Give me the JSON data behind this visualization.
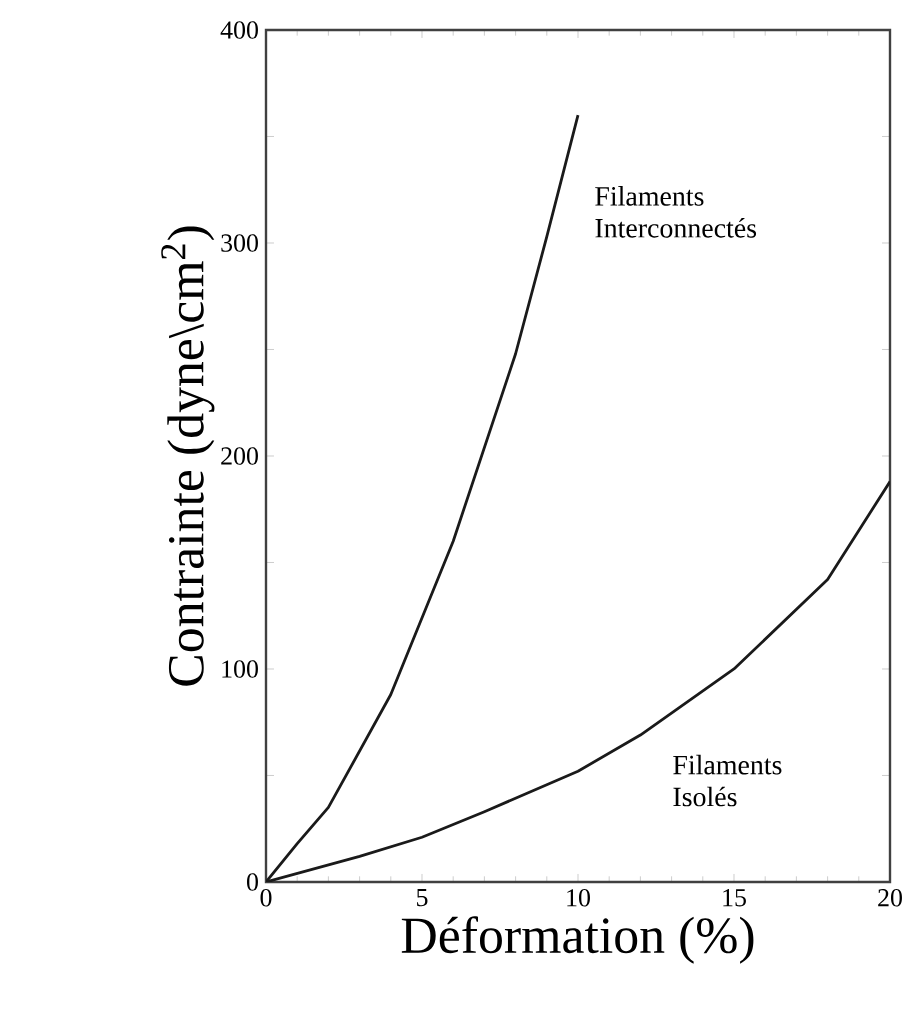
{
  "chart_data": {
    "type": "line",
    "xlabel": "Déformation (%)",
    "ylabel": "Contrainte (dyne\\cm$^{2}$)",
    "xlim": [
      0,
      20
    ],
    "ylim": [
      0,
      400
    ],
    "xticks": [
      0,
      5,
      10,
      15,
      20
    ],
    "yticks": [
      0,
      {
        "value": 50,
        "label": null
      },
      100,
      {
        "value": 150,
        "label": null
      },
      200,
      {
        "value": 250,
        "label": null
      },
      300,
      {
        "value": 350,
        "label": null
      },
      400
    ],
    "grid": false,
    "legend": false,
    "marker": "none",
    "line_style": "solid",
    "series": [
      {
        "name": "Filaments Interconnectés",
        "color": "#1a1a1a",
        "x": [
          0,
          1,
          2,
          4,
          6,
          8,
          9,
          10
        ],
        "values": [
          0,
          18,
          35,
          88,
          160,
          248,
          303,
          360
        ]
      },
      {
        "name": "Filaments Isolés",
        "color": "#1a1a1a",
        "x": [
          0,
          3,
          5,
          7,
          10,
          12,
          15,
          18,
          20
        ],
        "values": [
          0,
          12,
          21,
          33,
          52,
          69,
          100,
          142,
          188
        ]
      }
    ]
  }
}
